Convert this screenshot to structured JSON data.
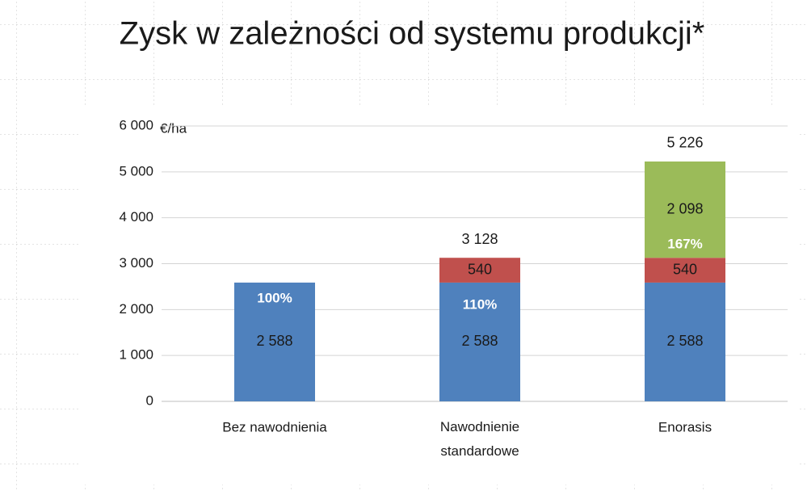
{
  "chart_data": {
    "type": "stacked_bar",
    "title": "Zysk w zależności od systemu produkcji*",
    "unit_label": "€/ha",
    "categories": [
      "Bez nawodnienia",
      "Nawodnienie standardowe",
      "Enorasis"
    ],
    "series": [
      {
        "color": "#4f81bd",
        "values": [
          2588,
          2588,
          2588
        ],
        "value_labels": [
          "2 588",
          "2 588",
          "2 588"
        ]
      },
      {
        "color": "#c0504d",
        "values": [
          null,
          540,
          540
        ],
        "value_labels": [
          null,
          "540",
          "540"
        ]
      },
      {
        "color": "#9bbb59",
        "values": [
          null,
          null,
          2098
        ],
        "value_labels": [
          null,
          null,
          "2 098"
        ]
      }
    ],
    "totals": [
      null,
      3128,
      5226
    ],
    "total_labels": [
      null,
      "3 128",
      "5 226"
    ],
    "percent_labels": [
      "100%",
      "110%",
      "167%"
    ],
    "ylim": [
      0,
      6000
    ],
    "yticks": [
      0,
      {
        "value": 1000,
        "label": "1 000"
      },
      {
        "value": 2000,
        "label": "2 000"
      },
      {
        "value": 3000,
        "label": "3 000"
      },
      {
        "value": 4000,
        "label": "4 000"
      },
      {
        "value": 5000,
        "label": "5 000"
      },
      {
        "value": 6000,
        "label": "6 000"
      }
    ],
    "grid": true
  }
}
